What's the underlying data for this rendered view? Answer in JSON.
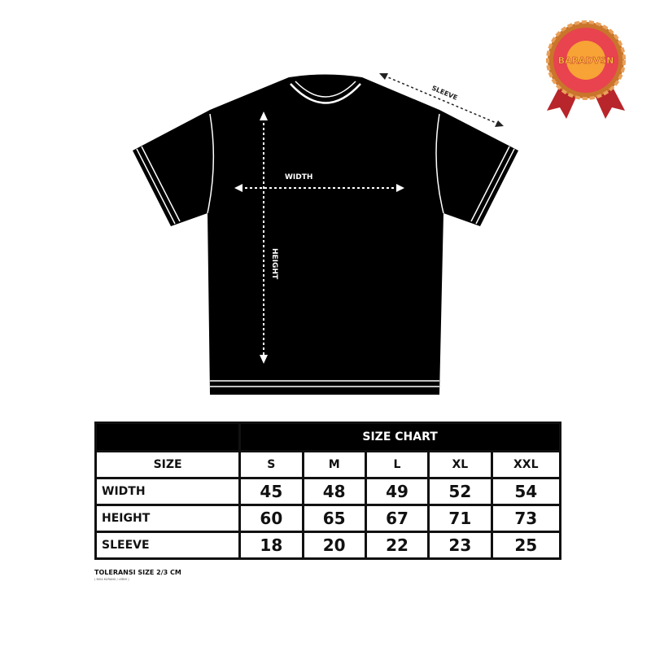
{
  "diagram": {
    "width_label": "WIDTH",
    "height_label": "HEIGHT",
    "sleeve_label": "SLEEVE"
  },
  "badge": {
    "text": "BARADVSN",
    "colors": {
      "ring": "#e8434f",
      "center": "#f7a335",
      "ribbon": "#b8252a"
    }
  },
  "size_chart": {
    "title": "SIZE CHART",
    "header_label": "SIZE",
    "sizes": [
      "S",
      "M",
      "L",
      "XL",
      "XXL"
    ],
    "rows": [
      {
        "label": "WIDTH",
        "values": [
          "45",
          "48",
          "49",
          "52",
          "54"
        ]
      },
      {
        "label": "HEIGHT",
        "values": [
          "60",
          "65",
          "67",
          "71",
          "73"
        ]
      },
      {
        "label": "SLEEVE",
        "values": [
          "18",
          "20",
          "22",
          "23",
          "25"
        ]
      }
    ],
    "unit": "cm"
  },
  "footer": {
    "tolerance": "TOLERANSI SIZE 2/3 CM",
    "note": "( BISA KURANG / LEBIH )"
  }
}
